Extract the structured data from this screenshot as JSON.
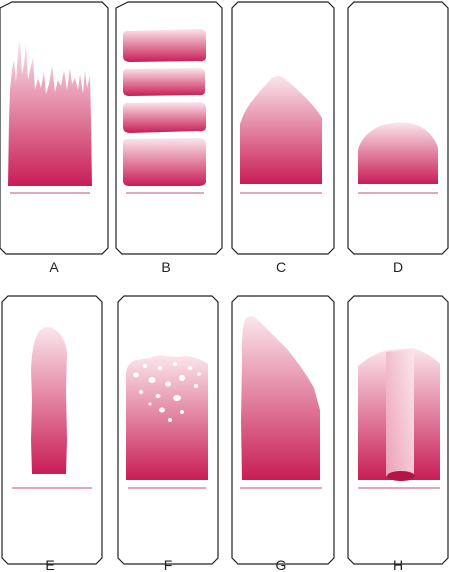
{
  "figure": {
    "panels": [
      {
        "label": "A",
        "shape": "frayed-top"
      },
      {
        "label": "B",
        "shape": "stacked-layers"
      },
      {
        "label": "C",
        "shape": "peaked-top"
      },
      {
        "label": "D",
        "shape": "dome"
      },
      {
        "label": "E",
        "shape": "narrow-column"
      },
      {
        "label": "F",
        "shape": "bubbled-top"
      },
      {
        "label": "G",
        "shape": "slanted-top"
      },
      {
        "label": "H",
        "shape": "channel"
      }
    ],
    "colors": {
      "gradient_top": "#fbe6ec",
      "gradient_bottom": "#c81d55",
      "outline": "#222222",
      "baseline": "#d98aa2"
    }
  }
}
